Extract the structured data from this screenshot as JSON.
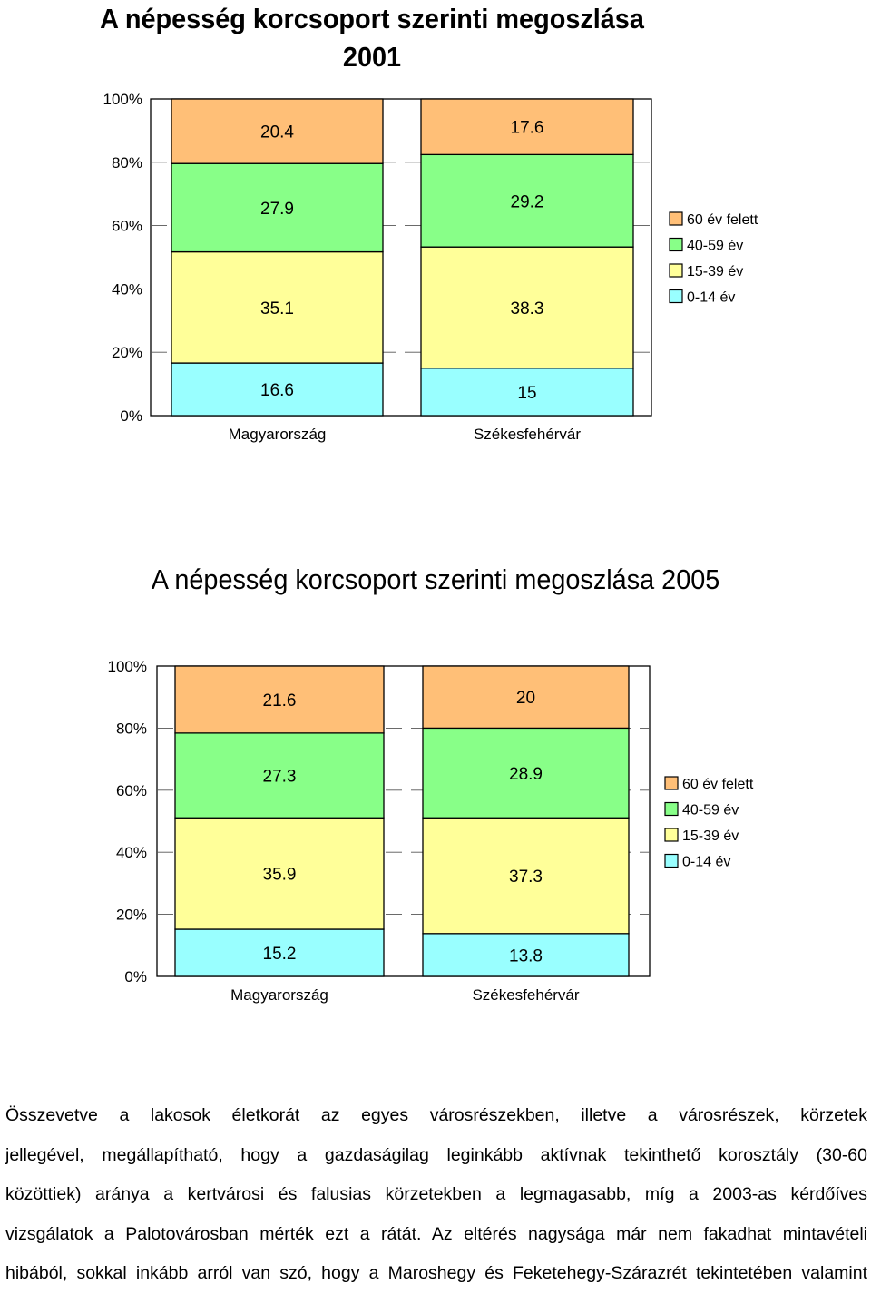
{
  "chart_data": [
    {
      "type": "bar",
      "stacked": true,
      "title": "A népesség korcsoport szerinti megoszlása 2001",
      "categories": [
        "Magyarország",
        "Székesfehérvár"
      ],
      "ylim": [
        0,
        100
      ],
      "yticks": [
        "0%",
        "20%",
        "40%",
        "60%",
        "80%",
        "100%"
      ],
      "legend_position": "right",
      "series": [
        {
          "name": "0-14 év",
          "color": "#99FFFF",
          "values": [
            16.6,
            15
          ]
        },
        {
          "name": "15-39 év",
          "color": "#FFFF99",
          "values": [
            35.1,
            38.3
          ]
        },
        {
          "name": "40-59 év",
          "color": "#88FF88",
          "values": [
            27.9,
            29.2
          ]
        },
        {
          "name": "60 év felett",
          "color": "#FFBF77",
          "values": [
            20.4,
            17.6
          ]
        }
      ],
      "legend_order": [
        "60 év felett",
        "40-59 év",
        "15-39 év",
        "0-14 év"
      ]
    },
    {
      "type": "bar",
      "stacked": true,
      "title": "A népesség korcsoport szerinti megoszlása 2005",
      "categories": [
        "Magyarország",
        "Székesfehérvár"
      ],
      "ylim": [
        0,
        100
      ],
      "yticks": [
        "0%",
        "20%",
        "40%",
        "60%",
        "80%",
        "100%"
      ],
      "legend_position": "right",
      "series": [
        {
          "name": "0-14 év",
          "color": "#99FFFF",
          "values": [
            15.2,
            13.8
          ]
        },
        {
          "name": "15-39 év",
          "color": "#FFFF99",
          "values": [
            35.9,
            37.3
          ]
        },
        {
          "name": "40-59 év",
          "color": "#88FF88",
          "values": [
            27.3,
            28.9
          ]
        },
        {
          "name": "60 év felett",
          "color": "#FFBF77",
          "values": [
            21.6,
            20
          ]
        }
      ],
      "legend_order": [
        "60 év felett",
        "40-59 év",
        "15-39 év",
        "0-14 év"
      ]
    }
  ],
  "paragraph": {
    "lines": [
      "Összevetve a lakosok életkorát az egyes városrészekben, illetve a városrészek, körzetek",
      "jellegével, megállapítható, hogy a gazdaságilag leginkább aktívnak tekinthető korosztály (30-60",
      "közöttiek) aránya a kertvárosi és falusias körzetekben a legmagasabb, míg a 2003-as kérdőíves",
      "vizsgálatok a Palotovárosban mérték ezt a rátát. Az eltérés nagysága már nem fakadhat mintavételi",
      "hibából, sokkal inkább arról van szó, hogy a Maroshegy és Feketehegy-Szárazrét tekintetében valamint"
    ]
  }
}
